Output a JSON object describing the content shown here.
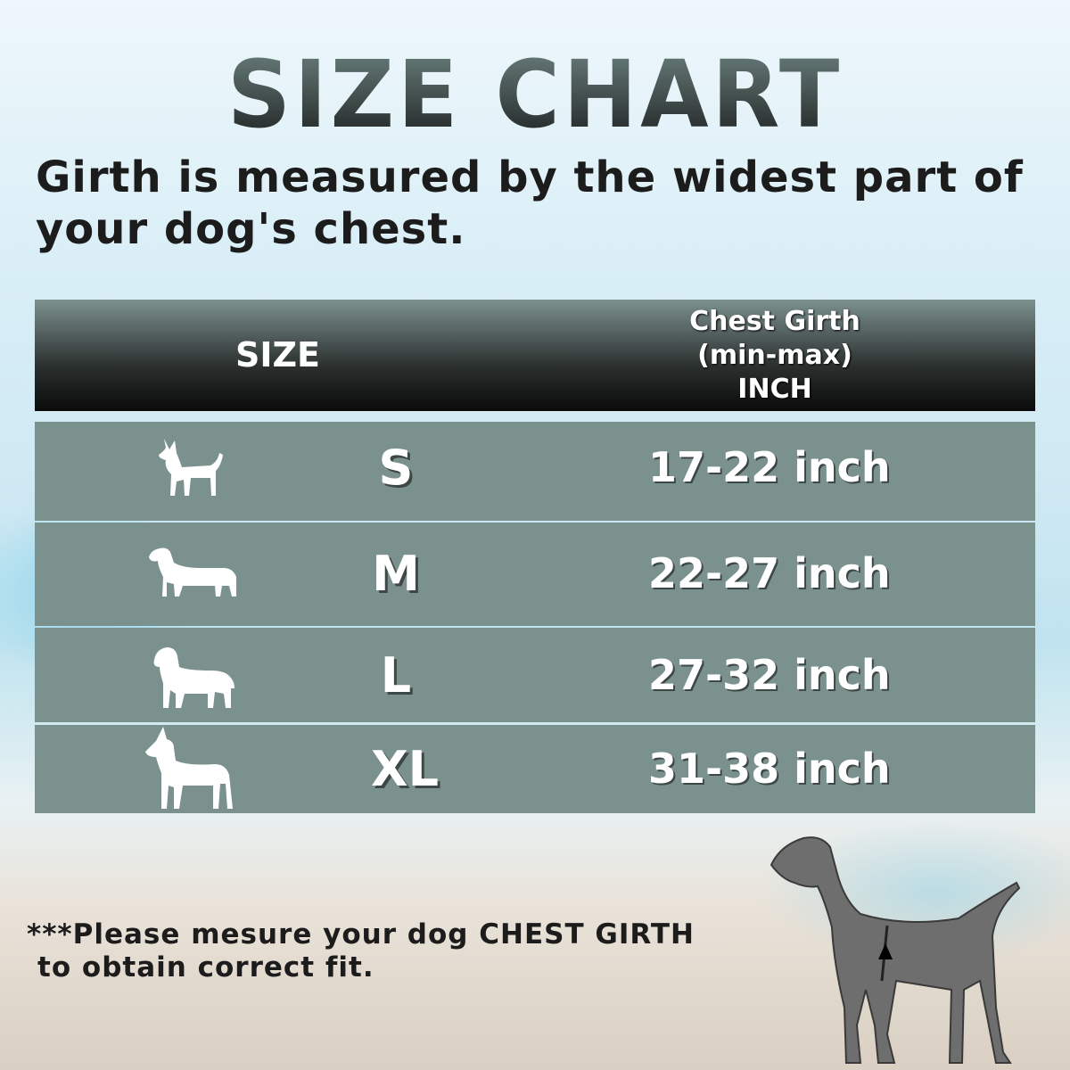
{
  "title": "SIZE CHART",
  "subtitle_lines": [
    "Girth is measured by the widest part of",
    "your dog's chest."
  ],
  "table": {
    "headers": {
      "size": "SIZE",
      "girth_lines": [
        "Chest Girth",
        "(min-max)",
        "INCH"
      ]
    },
    "rows": [
      {
        "icon": "small-dog-icon",
        "size": "S",
        "girth": "17-22 inch"
      },
      {
        "icon": "dachshund-icon",
        "size": "M",
        "girth": "22-27 inch"
      },
      {
        "icon": "large-dog-icon",
        "size": "L",
        "girth": "27-32 inch"
      },
      {
        "icon": "great-dane-icon",
        "size": "XL",
        "girth": "31-38 inch"
      }
    ]
  },
  "note_lines": [
    "***Please mesure your dog CHEST GIRTH",
    "to obtain correct fit."
  ],
  "colors": {
    "row": "#7b918e",
    "header_top": "#7c918e",
    "header_bottom": "#0a0a0a",
    "text": "#1c1c1c"
  }
}
